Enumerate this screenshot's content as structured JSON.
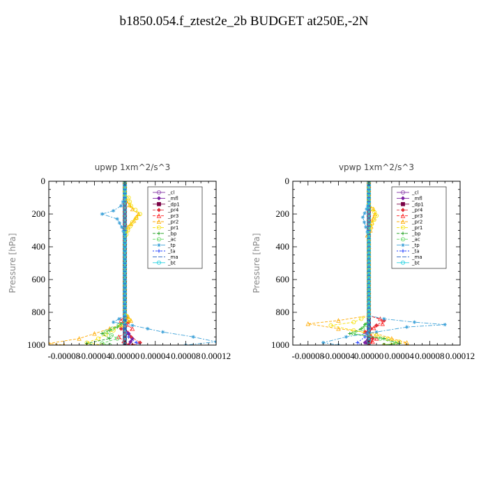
{
  "title": "b1850.054.f_ztest2e_2b  BUDGET at250E,-2N",
  "chart_data": [
    {
      "type": "line",
      "title": "upwp   1xm^2/s^3",
      "ylabel": "Pressure [hPa]",
      "xlabel": "",
      "xlim": [
        -0.0001,
        0.00012
      ],
      "ylim": [
        0,
        1000
      ],
      "y_inverted": true,
      "xticks": [
        "-0.00008",
        "-0.00004",
        "0.00000",
        "0.00004",
        "0.00008",
        "0.00012"
      ],
      "xtick_values": [
        -8e-05,
        -4e-05,
        0.0,
        4e-05,
        8e-05,
        0.00012
      ],
      "yticks": [
        0,
        200,
        400,
        600,
        800,
        1000
      ],
      "legend_position": "top-right",
      "series": [
        {
          "name": "_cl",
          "color": "#8e44ad",
          "marker": "circle",
          "dash": "",
          "points": [
            [
              0,
              0
            ],
            [
              0,
              200
            ],
            [
              0,
              400
            ],
            [
              0,
              600
            ],
            [
              0,
              800
            ],
            [
              0,
              1000
            ]
          ]
        },
        {
          "name": "_mfl",
          "color": "#7b1fa2",
          "marker": "diamond",
          "dash": "",
          "points": [
            [
              0,
              0
            ],
            [
              0,
              200
            ],
            [
              0,
              400
            ],
            [
              0,
              600
            ],
            [
              0,
              800
            ],
            [
              0,
              900
            ],
            [
              1e-05,
              960
            ],
            [
              5e-06,
              1000
            ]
          ]
        },
        {
          "name": "_dp1",
          "color": "#7a0045",
          "marker": "square",
          "dash": "",
          "points": [
            [
              0,
              0
            ],
            [
              0,
              200
            ],
            [
              0,
              400
            ],
            [
              0,
              600
            ],
            [
              0,
              800
            ],
            [
              0,
              1000
            ]
          ]
        },
        {
          "name": "_pr4",
          "color": "#e0303a",
          "marker": "diamond",
          "dash": "4,2",
          "points": [
            [
              0,
              0
            ],
            [
              0,
              800
            ],
            [
              5e-06,
              860
            ],
            [
              -5e-06,
              900
            ],
            [
              8e-06,
              950
            ],
            [
              2e-05,
              985
            ],
            [
              1e-05,
              1000
            ]
          ]
        },
        {
          "name": "_pr3",
          "color": "#ff2020",
          "marker": "triangle",
          "dash": "4,2",
          "points": [
            [
              0,
              0
            ],
            [
              0,
              820
            ],
            [
              -5e-06,
              850
            ],
            [
              1e-05,
              900
            ],
            [
              -8e-06,
              950
            ],
            [
              5e-06,
              1000
            ]
          ]
        },
        {
          "name": "_pr2",
          "color": "#ffaa00",
          "marker": "triangle",
          "dash": "4,2",
          "points": [
            [
              0,
              0
            ],
            [
              0,
              80
            ],
            [
              2e-06,
              120
            ],
            [
              1e-05,
              170
            ],
            [
              1.8e-05,
              200
            ],
            [
              1.2e-05,
              240
            ],
            [
              4e-06,
              280
            ],
            [
              0,
              320
            ],
            [
              0,
              800
            ],
            [
              8e-06,
              850
            ],
            [
              -2e-05,
              900
            ],
            [
              -6e-05,
              960
            ],
            [
              -0.0001,
              990
            ],
            [
              -8e-05,
              1000
            ]
          ]
        },
        {
          "name": "_pr1",
          "color": "#f5e000",
          "marker": "circle",
          "dash": "4,2",
          "points": [
            [
              0,
              0
            ],
            [
              0,
              80
            ],
            [
              5e-06,
              100
            ],
            [
              8e-06,
              150
            ],
            [
              2e-05,
              200
            ],
            [
              1e-05,
              250
            ],
            [
              4e-06,
              300
            ],
            [
              0,
              350
            ],
            [
              0,
              800
            ],
            [
              6e-06,
              850
            ],
            [
              -1.5e-05,
              910
            ],
            [
              -3.5e-05,
              960
            ],
            [
              -5e-05,
              985
            ],
            [
              -3e-05,
              1000
            ]
          ]
        },
        {
          "name": "_bp",
          "color": "#1a9e1a",
          "marker": "plus",
          "dash": "4,2",
          "points": [
            [
              0,
              0
            ],
            [
              0,
              850
            ],
            [
              -1e-05,
              890
            ],
            [
              -3e-05,
              930
            ],
            [
              -2e-05,
              960
            ],
            [
              -5e-05,
              990
            ],
            [
              -4e-05,
              1000
            ]
          ]
        },
        {
          "name": "_ac",
          "color": "#5ad65a",
          "marker": "circle",
          "dash": "4,2",
          "points": [
            [
              0,
              0
            ],
            [
              0,
              850
            ],
            [
              -8e-06,
              880
            ],
            [
              -2.5e-05,
              920
            ],
            [
              -1e-05,
              960
            ],
            [
              -3e-05,
              990
            ],
            [
              -2e-05,
              1000
            ]
          ]
        },
        {
          "name": "_tp",
          "color": "#3aa0d8",
          "marker": "star",
          "dash": "6,2,2,2",
          "points": [
            [
              0,
              0
            ],
            [
              0,
              100
            ],
            [
              -5e-06,
              150
            ],
            [
              -1.5e-05,
              180
            ],
            [
              -3e-05,
              200
            ],
            [
              -1e-05,
              230
            ],
            [
              -4e-06,
              280
            ],
            [
              0,
              330
            ],
            [
              0,
              820
            ],
            [
              -1.5e-05,
              860
            ],
            [
              1e-05,
              880
            ],
            [
              5e-05,
              920
            ],
            [
              9e-05,
              950
            ],
            [
              0.00012,
              980
            ],
            [
              8e-05,
              1000
            ]
          ]
        },
        {
          "name": "_ta",
          "color": "#1e3cff",
          "marker": "plus",
          "dash": "2,2",
          "points": [
            [
              0,
              0
            ],
            [
              0,
              900
            ],
            [
              5e-06,
              950
            ],
            [
              1.5e-05,
              985
            ],
            [
              2e-05,
              1000
            ]
          ]
        },
        {
          "name": "_ma",
          "color": "#2060c0",
          "marker": "none",
          "dash": "6,2",
          "points": [
            [
              0,
              0
            ],
            [
              0,
              1000
            ]
          ]
        },
        {
          "name": "_bt",
          "color": "#20d0e0",
          "marker": "circle",
          "dash": "",
          "points": [
            [
              0,
              0
            ],
            [
              0,
              1000
            ]
          ]
        }
      ]
    },
    {
      "type": "line",
      "title": "vpwp   1xm^2/s^3",
      "ylabel": "Pressure [hPa]",
      "xlabel": "",
      "xlim": [
        -0.0001,
        0.00012
      ],
      "ylim": [
        0,
        1000
      ],
      "y_inverted": true,
      "xticks": [
        "-0.00008",
        "-0.00004",
        "0.00000",
        "0.00004",
        "0.00008",
        "0.00012"
      ],
      "xtick_values": [
        -8e-05,
        -4e-05,
        0.0,
        4e-05,
        8e-05,
        0.00012
      ],
      "yticks": [
        0,
        200,
        400,
        600,
        800,
        1000
      ],
      "legend_position": "top-right",
      "series": [
        {
          "name": "_cl",
          "color": "#8e44ad",
          "marker": "circle",
          "dash": "",
          "points": [
            [
              0,
              0
            ],
            [
              0,
              200
            ],
            [
              0,
              400
            ],
            [
              0,
              600
            ],
            [
              0,
              800
            ],
            [
              0,
              1000
            ]
          ]
        },
        {
          "name": "_mfl",
          "color": "#7b1fa2",
          "marker": "diamond",
          "dash": "",
          "points": [
            [
              0,
              0
            ],
            [
              0,
              200
            ],
            [
              0,
              400
            ],
            [
              0,
              600
            ],
            [
              0,
              800
            ],
            [
              0,
              950
            ],
            [
              -5e-06,
              985
            ],
            [
              0,
              1000
            ]
          ]
        },
        {
          "name": "_dp1",
          "color": "#7a0045",
          "marker": "square",
          "dash": "",
          "points": [
            [
              0,
              0
            ],
            [
              0,
              200
            ],
            [
              0,
              400
            ],
            [
              0,
              600
            ],
            [
              0,
              800
            ],
            [
              0,
              1000
            ]
          ]
        },
        {
          "name": "_pr4",
          "color": "#e0303a",
          "marker": "diamond",
          "dash": "4,2",
          "points": [
            [
              0,
              0
            ],
            [
              0,
              820
            ],
            [
              2e-05,
              850
            ],
            [
              1e-05,
              880
            ],
            [
              -5e-06,
              920
            ],
            [
              5e-06,
              960
            ],
            [
              0,
              1000
            ]
          ]
        },
        {
          "name": "_pr3",
          "color": "#ff2020",
          "marker": "triangle",
          "dash": "4,2",
          "points": [
            [
              0,
              0
            ],
            [
              0,
              820
            ],
            [
              1.5e-05,
              840
            ],
            [
              1.8e-05,
              870
            ],
            [
              -5e-06,
              920
            ],
            [
              1e-05,
              960
            ],
            [
              0,
              1000
            ]
          ]
        },
        {
          "name": "_pr2",
          "color": "#ffaa00",
          "marker": "triangle",
          "dash": "4,2",
          "points": [
            [
              0,
              0
            ],
            [
              0,
              140
            ],
            [
              6e-06,
              170
            ],
            [
              8e-06,
              200
            ],
            [
              4e-06,
              250
            ],
            [
              2e-06,
              300
            ],
            [
              -2e-06,
              330
            ],
            [
              0,
              350
            ],
            [
              0,
              820
            ],
            [
              -4e-05,
              850
            ],
            [
              -8e-05,
              870
            ],
            [
              -4e-05,
              900
            ],
            [
              1e-05,
              930
            ],
            [
              3e-05,
              960
            ],
            [
              5e-05,
              985
            ],
            [
              2e-05,
              1000
            ]
          ]
        },
        {
          "name": "_pr1",
          "color": "#f5e000",
          "marker": "circle",
          "dash": "4,2",
          "points": [
            [
              0,
              0
            ],
            [
              0,
              140
            ],
            [
              5e-06,
              170
            ],
            [
              1e-05,
              210
            ],
            [
              4e-06,
              260
            ],
            [
              0,
              320
            ],
            [
              0,
              820
            ],
            [
              -2e-05,
              860
            ],
            [
              -5e-05,
              880
            ],
            [
              -2e-05,
              910
            ],
            [
              1e-05,
              940
            ],
            [
              4e-05,
              980
            ],
            [
              2e-05,
              1000
            ]
          ]
        },
        {
          "name": "_bp",
          "color": "#1a9e1a",
          "marker": "plus",
          "dash": "4,2",
          "points": [
            [
              0,
              0
            ],
            [
              0,
              850
            ],
            [
              -1e-05,
              900
            ],
            [
              -2.5e-05,
              930
            ],
            [
              2e-05,
              960
            ],
            [
              4e-05,
              990
            ],
            [
              2e-05,
              1000
            ]
          ]
        },
        {
          "name": "_ac",
          "color": "#5ad65a",
          "marker": "circle",
          "dash": "4,2",
          "points": [
            [
              0,
              0
            ],
            [
              0,
              850
            ],
            [
              -8e-06,
              900
            ],
            [
              -2e-05,
              930
            ],
            [
              1.5e-05,
              960
            ],
            [
              3.5e-05,
              990
            ],
            [
              2e-05,
              1000
            ]
          ]
        },
        {
          "name": "_tp",
          "color": "#3aa0d8",
          "marker": "star",
          "dash": "6,2,2,2",
          "points": [
            [
              0,
              0
            ],
            [
              0,
              130
            ],
            [
              -3e-06,
              170
            ],
            [
              -8e-06,
              220
            ],
            [
              -4e-06,
              280
            ],
            [
              0,
              340
            ],
            [
              0,
              820
            ],
            [
              2e-05,
              840
            ],
            [
              6e-05,
              860
            ],
            [
              0.0001,
              875
            ],
            [
              5e-05,
              890
            ],
            [
              1e-05,
              920
            ],
            [
              -3e-05,
              950
            ],
            [
              -6e-05,
              985
            ],
            [
              -4e-05,
              1000
            ]
          ]
        },
        {
          "name": "_ta",
          "color": "#1e3cff",
          "marker": "plus",
          "dash": "2,2",
          "points": [
            [
              0,
              0
            ],
            [
              0,
              900
            ],
            [
              -5e-06,
              950
            ],
            [
              -1.5e-05,
              985
            ],
            [
              -1e-05,
              1000
            ]
          ]
        },
        {
          "name": "_ma",
          "color": "#2060c0",
          "marker": "none",
          "dash": "6,2",
          "points": [
            [
              0,
              0
            ],
            [
              0,
              1000
            ]
          ]
        },
        {
          "name": "_bt",
          "color": "#20d0e0",
          "marker": "circle",
          "dash": "",
          "points": [
            [
              0,
              0
            ],
            [
              0,
              1000
            ]
          ]
        }
      ]
    }
  ]
}
